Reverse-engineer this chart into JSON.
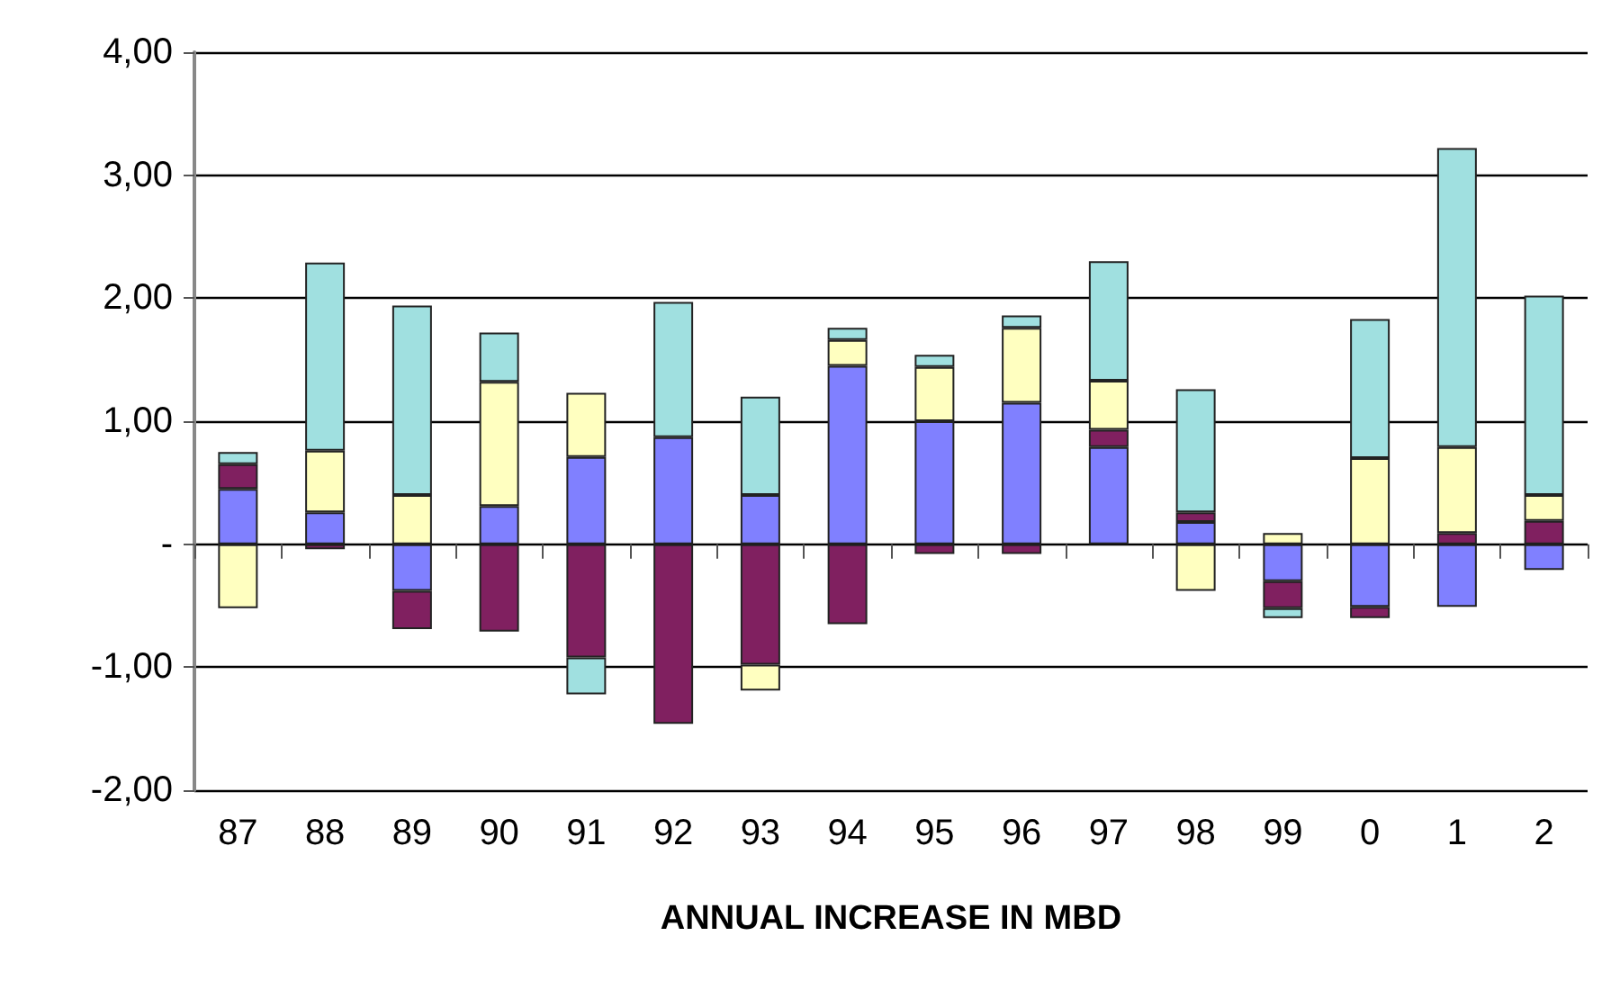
{
  "chart_data": {
    "type": "bar",
    "stacked": true,
    "xlabel": "ANNUAL INCREASE IN MBD",
    "categories": [
      "87",
      "88",
      "89",
      "90",
      "91",
      "92",
      "93",
      "94",
      "95",
      "96",
      "97",
      "98",
      "99",
      "0",
      "1",
      "2"
    ],
    "series": [
      {
        "color": "#8080ff",
        "values": [
          0.45,
          0.26,
          -0.38,
          0.31,
          0.71,
          0.87,
          0.4,
          1.45,
          1.0,
          1.15,
          0.79,
          0.18,
          -0.3,
          -0.51,
          -0.51,
          -0.21
        ]
      },
      {
        "color": "#802060",
        "values": [
          0.2,
          -0.04,
          -0.31,
          -0.71,
          -0.92,
          -1.46,
          -0.98,
          -0.65,
          -0.08,
          -0.08,
          0.14,
          0.08,
          -0.22,
          -0.09,
          0.09,
          0.19
        ]
      },
      {
        "color": "#ffffc0",
        "values": [
          -0.52,
          0.5,
          0.4,
          1.01,
          0.52,
          null,
          -0.21,
          0.21,
          0.44,
          0.61,
          0.4,
          -0.38,
          0.09,
          0.7,
          0.7,
          0.21
        ]
      },
      {
        "color": "#a0e0e0",
        "values": [
          0.1,
          1.53,
          1.54,
          0.4,
          -0.3,
          1.1,
          0.8,
          0.1,
          0.1,
          0.1,
          0.97,
          1.0,
          -0.08,
          1.13,
          2.43,
          1.62
        ]
      }
    ],
    "ylim": [
      -2,
      4
    ],
    "yticks": [
      {
        "value": -2,
        "label": "-2,00"
      },
      {
        "value": -1,
        "label": "-1,00"
      },
      {
        "value": 0,
        "label": "-"
      },
      {
        "value": 1,
        "label": "1,00"
      },
      {
        "value": 2,
        "label": "2,00"
      },
      {
        "value": 3,
        "label": "3,00"
      },
      {
        "value": 4,
        "label": "4,00"
      }
    ],
    "grid": "y"
  }
}
